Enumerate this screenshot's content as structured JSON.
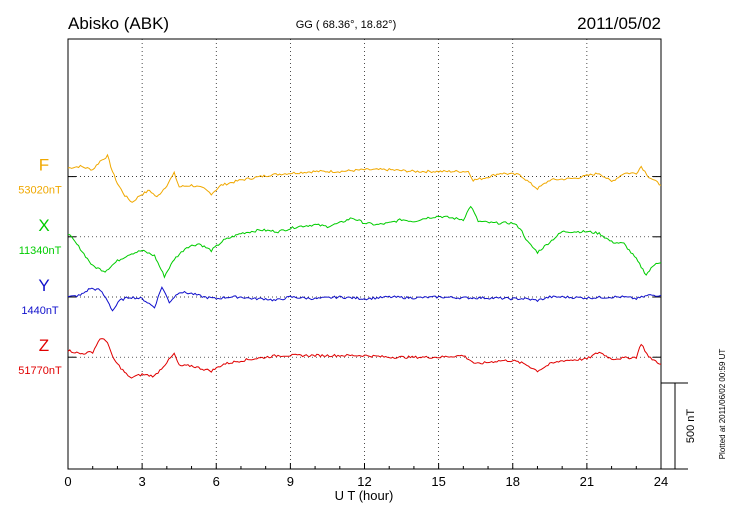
{
  "header": {
    "station": "Abisko (ABK)",
    "coords": "GG ( 68.36°,  18.82°)",
    "date": "2011/05/02"
  },
  "side_note": "Plotted at 2011/06/02 00:59 UT",
  "scale_bar_label": "500 nT",
  "chart_data": {
    "type": "line",
    "xlabel": "U T (hour)",
    "xlim": [
      0,
      24
    ],
    "xticks": [
      "0",
      "3",
      "6",
      "9",
      "12",
      "15",
      "18",
      "21",
      "24"
    ],
    "ylim": [
      -1000,
      1000
    ],
    "unit": "nT",
    "scale_bar_nT": 500,
    "grid": true,
    "series": [
      {
        "name": "F",
        "baseline_label": "53020nT",
        "baseline_nT": 53020,
        "offset_nT": 700,
        "color": "#f0a800",
        "points": [
          [
            0,
            50
          ],
          [
            0.5,
            60
          ],
          [
            1.0,
            40
          ],
          [
            1.3,
            90
          ],
          [
            1.6,
            120
          ],
          [
            1.8,
            30
          ],
          [
            2.0,
            -40
          ],
          [
            2.3,
            -110
          ],
          [
            2.6,
            -150
          ],
          [
            2.9,
            -110
          ],
          [
            3.3,
            -80
          ],
          [
            3.6,
            -120
          ],
          [
            4.0,
            -50
          ],
          [
            4.3,
            20
          ],
          [
            4.5,
            -60
          ],
          [
            5.0,
            -50
          ],
          [
            5.5,
            -70
          ],
          [
            5.8,
            -100
          ],
          [
            6.2,
            -50
          ],
          [
            7.0,
            -20
          ],
          [
            7.8,
            0
          ],
          [
            8.2,
            10
          ],
          [
            9.0,
            20
          ],
          [
            10.0,
            30
          ],
          [
            11.0,
            30
          ],
          [
            12.0,
            40
          ],
          [
            13.0,
            40
          ],
          [
            14.0,
            30
          ],
          [
            15.0,
            30
          ],
          [
            16.2,
            30
          ],
          [
            16.4,
            -20
          ],
          [
            16.8,
            -10
          ],
          [
            17.5,
            20
          ],
          [
            18.3,
            10
          ],
          [
            18.8,
            -50
          ],
          [
            19.0,
            -70
          ],
          [
            19.5,
            -20
          ],
          [
            20.5,
            -10
          ],
          [
            21.5,
            20
          ],
          [
            22.0,
            -30
          ],
          [
            22.5,
            20
          ],
          [
            23.0,
            20
          ],
          [
            23.2,
            60
          ],
          [
            23.5,
            0
          ],
          [
            24,
            -50
          ]
        ]
      },
      {
        "name": "X",
        "baseline_label": "11340nT",
        "baseline_nT": 11340,
        "offset_nT": 350,
        "color": "#00cc00",
        "points": [
          [
            0,
            20
          ],
          [
            0.5,
            -70
          ],
          [
            1.0,
            -170
          ],
          [
            1.5,
            -200
          ],
          [
            2.0,
            -140
          ],
          [
            2.5,
            -100
          ],
          [
            3.0,
            -80
          ],
          [
            3.5,
            -110
          ],
          [
            3.9,
            -230
          ],
          [
            4.3,
            -130
          ],
          [
            4.8,
            -60
          ],
          [
            5.3,
            -40
          ],
          [
            5.8,
            -80
          ],
          [
            6.3,
            -20
          ],
          [
            7.0,
            20
          ],
          [
            7.8,
            40
          ],
          [
            8.5,
            30
          ],
          [
            9.3,
            60
          ],
          [
            10.0,
            70
          ],
          [
            10.5,
            60
          ],
          [
            11.0,
            80
          ],
          [
            11.5,
            110
          ],
          [
            12.0,
            80
          ],
          [
            12.5,
            70
          ],
          [
            13.0,
            80
          ],
          [
            13.5,
            100
          ],
          [
            14.0,
            90
          ],
          [
            14.5,
            110
          ],
          [
            15.0,
            120
          ],
          [
            15.5,
            110
          ],
          [
            16.0,
            100
          ],
          [
            16.3,
            180
          ],
          [
            16.6,
            90
          ],
          [
            17.2,
            80
          ],
          [
            18.0,
            80
          ],
          [
            18.3,
            50
          ],
          [
            18.6,
            -30
          ],
          [
            19.0,
            -90
          ],
          [
            19.5,
            -30
          ],
          [
            20.0,
            30
          ],
          [
            21.0,
            30
          ],
          [
            21.5,
            20
          ],
          [
            22.0,
            -30
          ],
          [
            22.5,
            -40
          ],
          [
            23.0,
            -130
          ],
          [
            23.4,
            -220
          ],
          [
            23.8,
            -150
          ],
          [
            24,
            -150
          ]
        ]
      },
      {
        "name": "Y",
        "baseline_label": "1440nT",
        "baseline_nT": 1440,
        "offset_nT": 0,
        "color": "#1010cc",
        "points": [
          [
            0,
            0
          ],
          [
            0.5,
            10
          ],
          [
            0.9,
            50
          ],
          [
            1.3,
            40
          ],
          [
            1.6,
            -20
          ],
          [
            1.8,
            -80
          ],
          [
            2.1,
            -20
          ],
          [
            2.5,
            0
          ],
          [
            3.0,
            -10
          ],
          [
            3.5,
            -60
          ],
          [
            3.8,
            60
          ],
          [
            4.1,
            -30
          ],
          [
            4.5,
            30
          ],
          [
            5.0,
            20
          ],
          [
            5.5,
            0
          ],
          [
            6.0,
            -10
          ],
          [
            6.5,
            0
          ],
          [
            7.0,
            0
          ],
          [
            7.5,
            -10
          ],
          [
            8.0,
            -10
          ],
          [
            8.4,
            -20
          ],
          [
            9.0,
            0
          ],
          [
            10.0,
            -10
          ],
          [
            11.0,
            0
          ],
          [
            12.0,
            -10
          ],
          [
            13.0,
            0
          ],
          [
            14.0,
            -5
          ],
          [
            15.0,
            0
          ],
          [
            16.0,
            -5
          ],
          [
            17.0,
            -5
          ],
          [
            18.0,
            -10
          ],
          [
            18.5,
            -10
          ],
          [
            19.0,
            -20
          ],
          [
            19.5,
            0
          ],
          [
            20.0,
            0
          ],
          [
            21.0,
            -5
          ],
          [
            22.0,
            0
          ],
          [
            22.5,
            0
          ],
          [
            23.0,
            -10
          ],
          [
            23.5,
            10
          ],
          [
            24,
            10
          ]
        ]
      },
      {
        "name": "Z",
        "baseline_label": "51770nT",
        "baseline_nT": 51770,
        "offset_nT": -350,
        "color": "#e00000",
        "points": [
          [
            0,
            40
          ],
          [
            0.5,
            20
          ],
          [
            1.0,
            30
          ],
          [
            1.3,
            110
          ],
          [
            1.6,
            90
          ],
          [
            1.8,
            0
          ],
          [
            2.0,
            -40
          ],
          [
            2.5,
            -120
          ],
          [
            3.0,
            -100
          ],
          [
            3.5,
            -110
          ],
          [
            4.0,
            -30
          ],
          [
            4.3,
            20
          ],
          [
            4.5,
            -50
          ],
          [
            5.0,
            -50
          ],
          [
            5.5,
            -70
          ],
          [
            5.8,
            -80
          ],
          [
            6.3,
            -40
          ],
          [
            7.0,
            -20
          ],
          [
            8.0,
            0
          ],
          [
            8.5,
            10
          ],
          [
            9.0,
            10
          ],
          [
            10.0,
            10
          ],
          [
            11.0,
            10
          ],
          [
            12.0,
            10
          ],
          [
            13.0,
            0
          ],
          [
            14.0,
            0
          ],
          [
            15.0,
            0
          ],
          [
            16.0,
            10
          ],
          [
            16.5,
            -40
          ],
          [
            17.0,
            -30
          ],
          [
            17.5,
            -20
          ],
          [
            18.0,
            -20
          ],
          [
            18.5,
            -40
          ],
          [
            19.0,
            -80
          ],
          [
            19.5,
            -40
          ],
          [
            20.0,
            -20
          ],
          [
            21.0,
            -10
          ],
          [
            21.5,
            30
          ],
          [
            22.0,
            -10
          ],
          [
            23.0,
            0
          ],
          [
            23.2,
            80
          ],
          [
            23.5,
            0
          ],
          [
            24,
            -40
          ]
        ]
      }
    ]
  }
}
